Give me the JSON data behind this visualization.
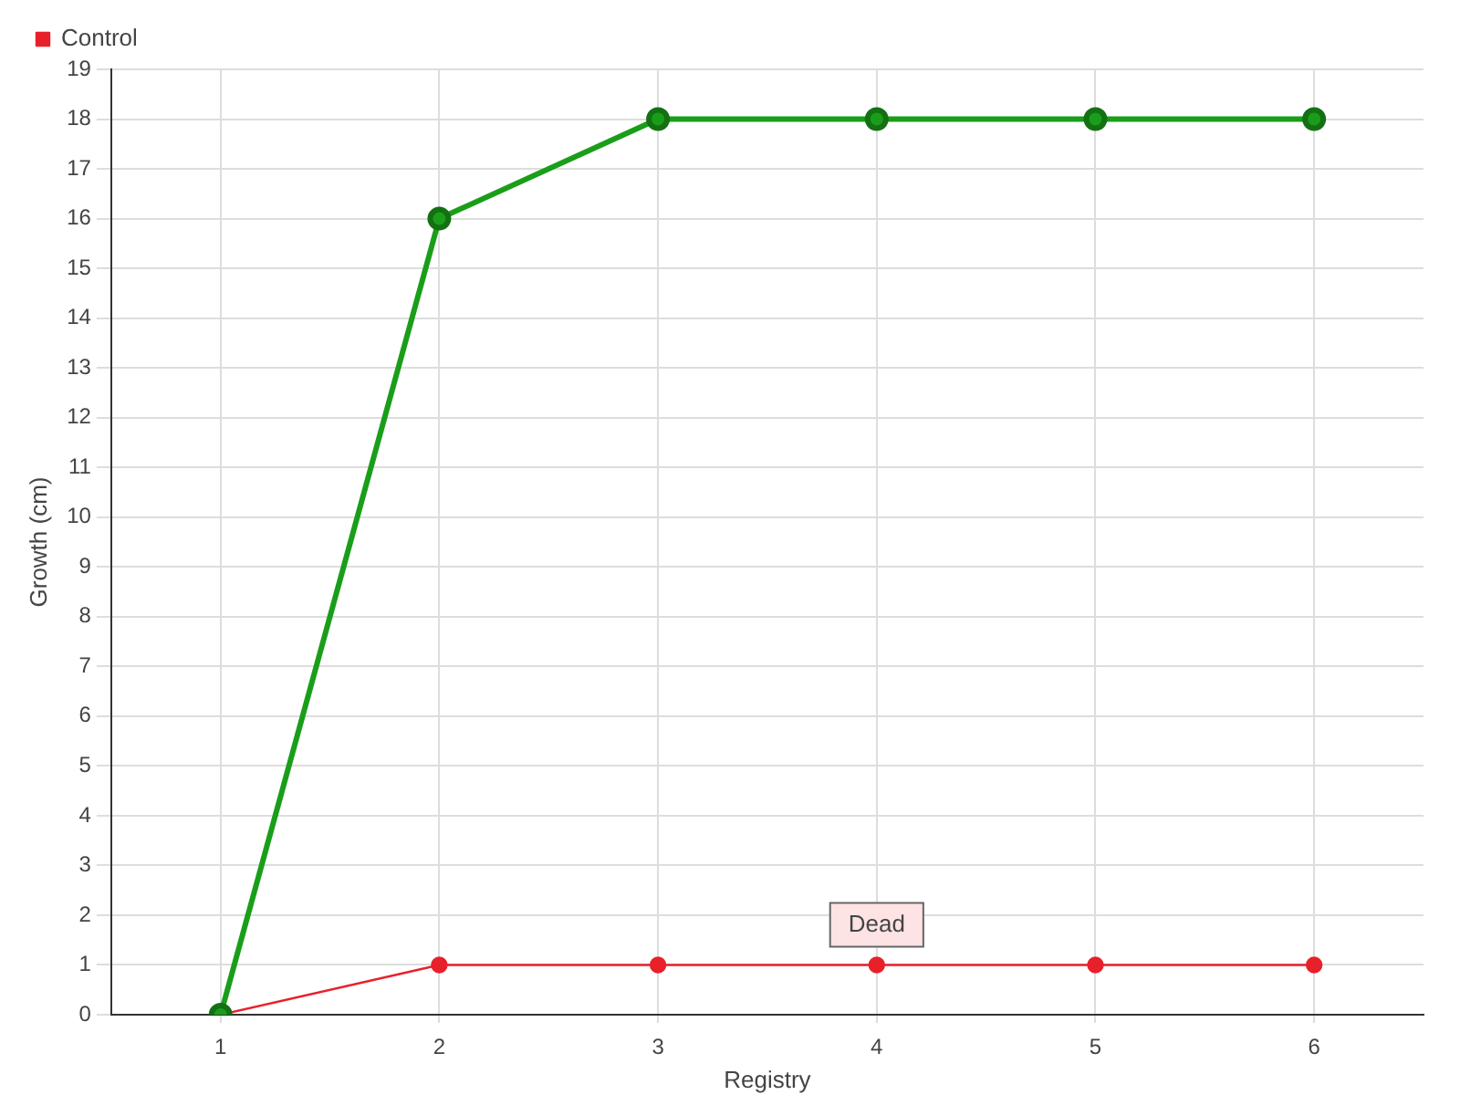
{
  "chart_data": {
    "type": "line",
    "xlabel": "Registry",
    "ylabel": "Growth (cm)",
    "categories": [
      "1",
      "2",
      "3",
      "4",
      "5",
      "6"
    ],
    "series": [
      {
        "color": "#1a9e1a",
        "values": [
          0,
          16,
          18,
          18,
          18,
          18
        ]
      },
      {
        "name": "Control",
        "color": "#e8202a",
        "values": [
          0,
          1,
          1,
          1,
          1,
          1
        ]
      }
    ],
    "ylim": [
      0,
      19
    ],
    "yticks": [
      0,
      1,
      2,
      3,
      4,
      5,
      6,
      7,
      8,
      9,
      10,
      11,
      12,
      13,
      14,
      15,
      16,
      17,
      18,
      19
    ],
    "grid": true,
    "legend": "top left",
    "marker": "circle",
    "line_style": "solid",
    "annotations": [
      {
        "text": "Dead",
        "x": "4",
        "y": 1
      }
    ]
  }
}
